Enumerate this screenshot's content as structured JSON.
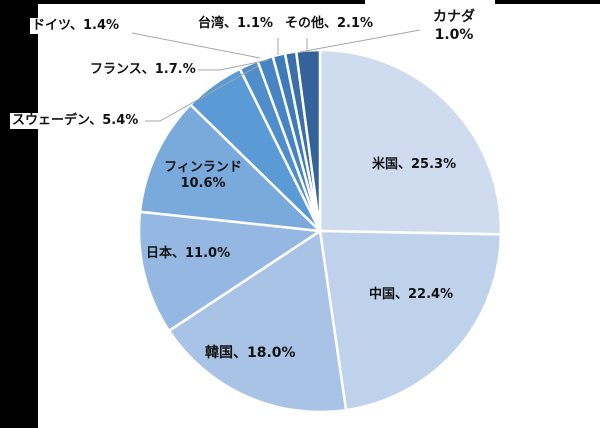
{
  "chart_data": {
    "type": "pie",
    "title": "",
    "start_angle_deg": 0,
    "direction": "clockwise",
    "center": [
      320,
      231
    ],
    "radius": 181,
    "slices": [
      {
        "name": "米国",
        "value": 25.3,
        "label": "米国、25.3%",
        "color": "#cfdbee"
      },
      {
        "name": "中国",
        "value": 22.4,
        "label": "中国、22.4%",
        "color": "#bfd2ec"
      },
      {
        "name": "韓国",
        "value": 18.0,
        "label": "韓国、18.0%",
        "color": "#a9c3e6"
      },
      {
        "name": "日本",
        "value": 11.0,
        "label": "日本、11.0%",
        "color": "#94b8e2"
      },
      {
        "name": "フィンランド",
        "value": 10.6,
        "label": "フィンランド\n10.6%",
        "color": "#7aa9dc"
      },
      {
        "name": "スウェーデン",
        "value": 5.4,
        "label": "スウェーデン、5.4%",
        "color": "#5b9bd5"
      },
      {
        "name": "フランス",
        "value": 1.7,
        "label": "フランス、1.7.%",
        "color": "#4f8ecb"
      },
      {
        "name": "ドイツ",
        "value": 1.4,
        "label": "ドイツ、1.4%",
        "color": "#4684c4"
      },
      {
        "name": "台湾",
        "value": 1.1,
        "label": "台湾、1.1%",
        "color": "#3f7abb"
      },
      {
        "name": "カナダ",
        "value": 1.0,
        "label": "カナダ\n1.0%",
        "color": "#3a6faa"
      },
      {
        "name": "その他",
        "value": 2.1,
        "label": "その他、2.1%",
        "color": "#35629a"
      }
    ]
  },
  "labels": {
    "us": "米国、25.3%",
    "china": "中国、22.4%",
    "korea": "韓国、18.0%",
    "japan": "日本、11.0%",
    "finland_name": "フィンランド",
    "finland_value": "10.6%",
    "sweden": "スウェーデン、5.4%",
    "france": "フランス、1.7.%",
    "germany": "ドイツ、1.4%",
    "taiwan": "台湾、1.1%",
    "other": "その他、2.1%",
    "canada_name": "カナダ",
    "canada_value": "1.0%"
  }
}
